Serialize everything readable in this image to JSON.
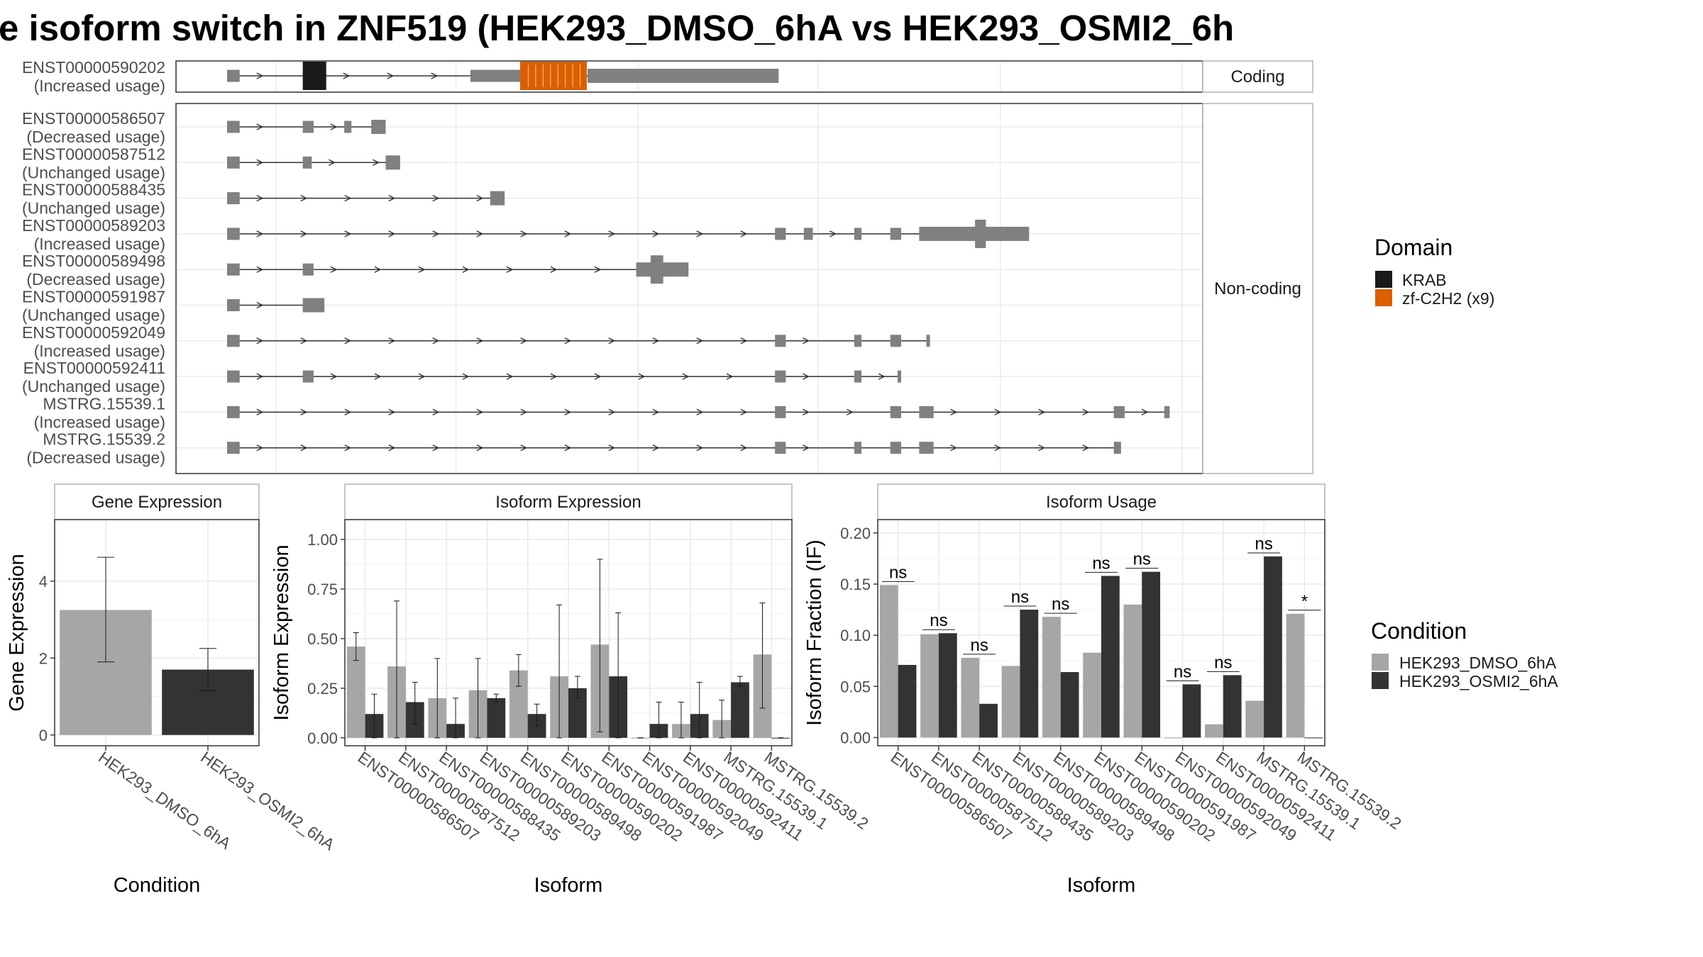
{
  "title": "e isoform switch in ZNF519 (HEK293_DMSO_6hA vs HEK293_OSMI2_6h",
  "colors": {
    "dmso": "#a6a6a6",
    "osmi": "#333333",
    "exon": "#808080",
    "krab": "#1a1a1a",
    "zf": "#d95f02",
    "grid": "#ebebeb",
    "frame": "#333333"
  },
  "structure": {
    "coding_strip": "Coding",
    "noncoding_strip": "Non-coding",
    "domain_legend": {
      "title": "Domain",
      "items": [
        {
          "label": "KRAB",
          "color": "#1a1a1a"
        },
        {
          "label": "zf-C2H2 (x9)",
          "color": "#d95f02"
        }
      ]
    },
    "coding": [
      {
        "id": "ENST00000590202",
        "usage": "(Increased usage)",
        "exons": [
          [
            0,
            0.07,
            "n"
          ],
          [
            0.42,
            0.55,
            "n"
          ],
          [
            1.35,
            1.8,
            "n"
          ],
          [
            2.0,
            3.06,
            "t"
          ]
        ],
        "krab": [
          0.42,
          0.55
        ],
        "zf": [
          1.63,
          2.0
        ]
      }
    ],
    "noncoding": [
      {
        "id": "ENST00000586507",
        "usage": "(Decreased usage)",
        "exons": [
          [
            0,
            0.07,
            "n"
          ],
          [
            0.42,
            0.48,
            "n"
          ],
          [
            0.65,
            0.69,
            "n"
          ],
          [
            0.8,
            0.88,
            "t"
          ]
        ]
      },
      {
        "id": "ENST00000587512",
        "usage": "(Unchanged usage)",
        "exons": [
          [
            0,
            0.07,
            "n"
          ],
          [
            0.42,
            0.47,
            "n"
          ],
          [
            0.88,
            0.96,
            "t"
          ]
        ]
      },
      {
        "id": "ENST00000588435",
        "usage": "(Unchanged usage)",
        "exons": [
          [
            0,
            0.07,
            "n"
          ],
          [
            1.46,
            1.54,
            "t"
          ]
        ]
      },
      {
        "id": "ENST00000589203",
        "usage": "(Increased usage)",
        "exons": [
          [
            0,
            0.07,
            "n"
          ],
          [
            3.04,
            3.1,
            "n"
          ],
          [
            3.2,
            3.25,
            "n"
          ],
          [
            3.48,
            3.52,
            "n"
          ],
          [
            3.68,
            3.74,
            "n"
          ],
          [
            3.84,
            4.45,
            "t"
          ],
          [
            4.15,
            4.21,
            "k"
          ]
        ]
      },
      {
        "id": "ENST00000589498",
        "usage": "(Decreased usage)",
        "exons": [
          [
            0,
            0.07,
            "n"
          ],
          [
            0.42,
            0.48,
            "n"
          ],
          [
            2.27,
            2.56,
            "t"
          ],
          [
            2.35,
            2.42,
            "k"
          ]
        ]
      },
      {
        "id": "ENST00000591987",
        "usage": "(Unchanged usage)",
        "exons": [
          [
            0,
            0.07,
            "n"
          ],
          [
            0.42,
            0.54,
            "t"
          ]
        ]
      },
      {
        "id": "ENST00000592049",
        "usage": "(Increased usage)",
        "exons": [
          [
            0,
            0.07,
            "n"
          ],
          [
            3.04,
            3.1,
            "n"
          ],
          [
            3.48,
            3.52,
            "n"
          ],
          [
            3.68,
            3.74,
            "n"
          ],
          [
            3.88,
            3.9,
            "n"
          ]
        ]
      },
      {
        "id": "ENST00000592411",
        "usage": "(Unchanged usage)",
        "exons": [
          [
            0,
            0.07,
            "n"
          ],
          [
            0.42,
            0.48,
            "n"
          ],
          [
            3.04,
            3.1,
            "n"
          ],
          [
            3.48,
            3.52,
            "n"
          ],
          [
            3.72,
            3.74,
            "n"
          ]
        ]
      },
      {
        "id": "MSTRG.15539.1",
        "usage": "(Increased usage)",
        "exons": [
          [
            0,
            0.07,
            "n"
          ],
          [
            3.04,
            3.1,
            "n"
          ],
          [
            3.68,
            3.74,
            "n"
          ],
          [
            3.84,
            3.92,
            "n"
          ],
          [
            4.92,
            4.98,
            "n"
          ],
          [
            5.2,
            5.23,
            "n"
          ]
        ]
      },
      {
        "id": "MSTRG.15539.2",
        "usage": "(Decreased usage)",
        "exons": [
          [
            0,
            0.07,
            "n"
          ],
          [
            3.04,
            3.1,
            "n"
          ],
          [
            3.48,
            3.52,
            "n"
          ],
          [
            3.68,
            3.74,
            "n"
          ],
          [
            3.84,
            3.92,
            "n"
          ],
          [
            4.92,
            4.96,
            "n"
          ]
        ]
      }
    ]
  },
  "chart_data": [
    {
      "type": "bar",
      "title": "Gene Expression",
      "xlabel": "Condition",
      "ylabel": "Gene Expression",
      "categories": [
        "HEK293_DMSO_6hA",
        "HEK293_OSMI2_6hA"
      ],
      "values": [
        3.25,
        1.7
      ],
      "err_low": [
        1.9,
        1.15
      ],
      "err_high": [
        4.62,
        2.25
      ],
      "ylim": [
        -0.28,
        5.6
      ],
      "yticks": [
        0,
        2,
        4
      ]
    },
    {
      "type": "bar",
      "title": "Isoform Expression",
      "xlabel": "Isoform",
      "ylabel": "Isoform Expression",
      "categories": [
        "ENST00000586507",
        "ENST00000587512",
        "ENST00000588435",
        "ENST00000589203",
        "ENST00000589498",
        "ENST00000590202",
        "ENST00000591987",
        "ENST00000592049",
        "ENST00000592411",
        "MSTRG.15539.1",
        "MSTRG.15539.2"
      ],
      "series": [
        {
          "name": "HEK293_DMSO_6hA",
          "values": [
            0.46,
            0.36,
            0.2,
            0.24,
            0.34,
            0.31,
            0.47,
            0.0,
            0.07,
            0.09,
            0.42
          ],
          "err_low": [
            0.39,
            0.0,
            0.0,
            0.0,
            0.26,
            0.0,
            0.03,
            0.0,
            0.0,
            0.0,
            0.15
          ],
          "err_high": [
            0.53,
            0.69,
            0.4,
            0.4,
            0.42,
            0.67,
            0.9,
            0.0,
            0.18,
            0.19,
            0.68
          ]
        },
        {
          "name": "HEK293_OSMI2_6hA",
          "values": [
            0.12,
            0.18,
            0.07,
            0.2,
            0.12,
            0.25,
            0.31,
            0.07,
            0.12,
            0.28,
            0.0
          ],
          "err_low": [
            0.0,
            0.07,
            0.0,
            0.18,
            0.06,
            0.2,
            0.0,
            0.0,
            0.0,
            0.26,
            0.0
          ],
          "err_high": [
            0.22,
            0.28,
            0.2,
            0.22,
            0.17,
            0.31,
            0.63,
            0.18,
            0.28,
            0.31,
            0.0
          ]
        }
      ],
      "ylim": [
        -0.04,
        1.1
      ],
      "yticks": [
        0.0,
        0.25,
        0.5,
        0.75,
        1.0
      ],
      "yticklabels": [
        "0.00",
        "0.25",
        "0.50",
        "0.75",
        "1.00"
      ]
    },
    {
      "type": "bar",
      "title": "Isoform Usage",
      "xlabel": "Isoform",
      "ylabel": "Isoform Fraction (IF)",
      "categories": [
        "ENST00000586507",
        "ENST00000587512",
        "ENST00000588435",
        "ENST00000589203",
        "ENST00000589498",
        "ENST00000590202",
        "ENST00000591987",
        "ENST00000592049",
        "ENST00000592411",
        "MSTRG.15539.1",
        "MSTRG.15539.2"
      ],
      "series": [
        {
          "name": "HEK293_DMSO_6hA",
          "values": [
            0.149,
            0.101,
            0.078,
            0.07,
            0.118,
            0.083,
            0.13,
            0.0,
            0.013,
            0.036,
            0.121
          ]
        },
        {
          "name": "HEK293_OSMI2_6hA",
          "values": [
            0.071,
            0.102,
            0.033,
            0.125,
            0.064,
            0.158,
            0.162,
            0.052,
            0.061,
            0.177,
            0.0
          ]
        }
      ],
      "significance": [
        "ns",
        "ns",
        "ns",
        "ns",
        "ns",
        "ns",
        "ns",
        "ns",
        "ns",
        "ns",
        "*"
      ],
      "ylim": [
        -0.008,
        0.213
      ],
      "yticks": [
        0.0,
        0.05,
        0.1,
        0.15,
        0.2
      ],
      "yticklabels": [
        "0.00",
        "0.05",
        "0.10",
        "0.15",
        "0.20"
      ]
    }
  ],
  "condition_legend": {
    "title": "Condition",
    "items": [
      {
        "label": "HEK293_DMSO_6hA",
        "color": "#a6a6a6"
      },
      {
        "label": "HEK293_OSMI2_6hA",
        "color": "#333333"
      }
    ]
  }
}
